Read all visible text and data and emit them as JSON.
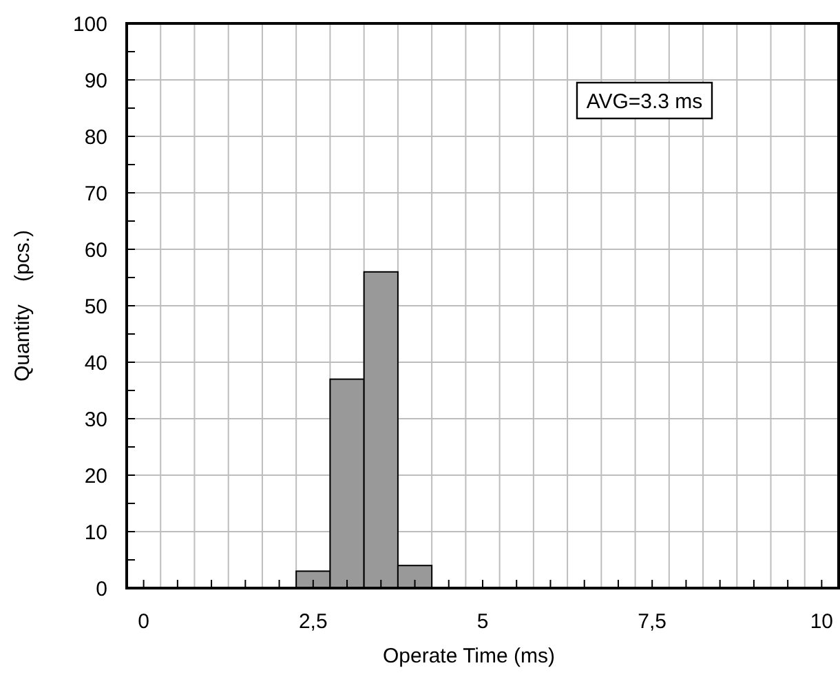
{
  "chart_data": {
    "type": "histogram",
    "xlabel": "Operate Time (ms)",
    "ylabel": "Quantity    (pcs.)",
    "bins": [
      2.25,
      2.75,
      3.25,
      3.75,
      4.25
    ],
    "values": [
      3,
      37,
      56,
      4
    ],
    "color": "#999999",
    "xlim": [
      -0.25,
      10.25
    ],
    "xticks": [
      0,
      {
        "value": 0.5,
        "label": null
      },
      {
        "value": 1,
        "label": null
      },
      {
        "value": 1.5,
        "label": null
      },
      {
        "value": 2,
        "label": null
      },
      {
        "value": 2.5,
        "label": "2,5"
      },
      {
        "value": 3,
        "label": null
      },
      {
        "value": 3.5,
        "label": null
      },
      {
        "value": 4,
        "label": null
      },
      {
        "value": 4.5,
        "label": null
      },
      5,
      {
        "value": 5.5,
        "label": null
      },
      {
        "value": 6,
        "label": null
      },
      {
        "value": 6.5,
        "label": null
      },
      {
        "value": 7,
        "label": null
      },
      {
        "value": 7.5,
        "label": "7,5"
      },
      {
        "value": 8,
        "label": null
      },
      {
        "value": 8.5,
        "label": null
      },
      {
        "value": 9,
        "label": null
      },
      {
        "value": 9.5,
        "label": null
      },
      10
    ],
    "ylim": [
      0,
      100
    ],
    "yticks": [
      0,
      {
        "value": 5,
        "label": null
      },
      10,
      {
        "value": 15,
        "label": null
      },
      20,
      {
        "value": 25,
        "label": null
      },
      30,
      {
        "value": 35,
        "label": null
      },
      40,
      {
        "value": 45,
        "label": null
      },
      50,
      {
        "value": 55,
        "label": null
      },
      60,
      {
        "value": 65,
        "label": null
      },
      70,
      {
        "value": 75,
        "label": null
      },
      80,
      {
        "value": 85,
        "label": null
      },
      90,
      {
        "value": 95,
        "label": null
      },
      100
    ],
    "grid": true,
    "annotations": [
      "AVG=3.3 ms"
    ]
  }
}
